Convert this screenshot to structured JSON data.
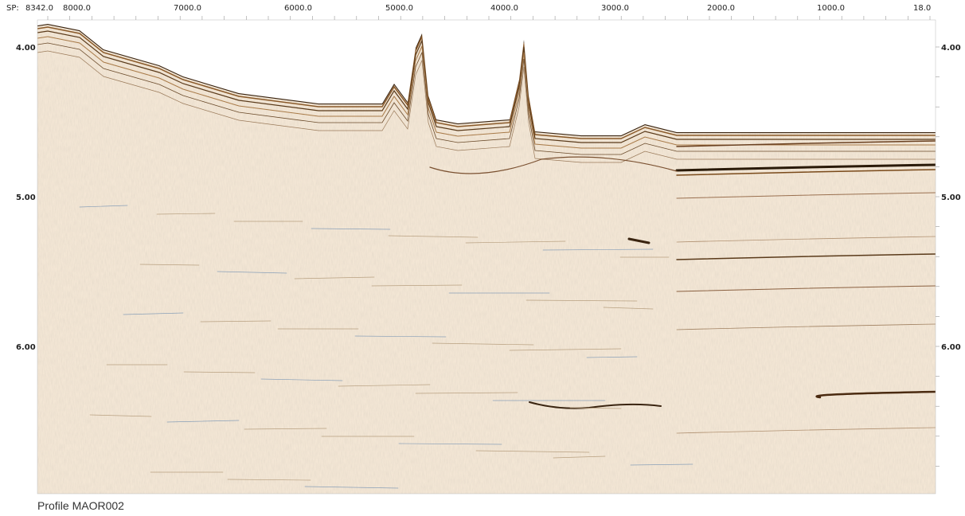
{
  "top_axis": {
    "prefix": "SP:",
    "labels": [
      "8342.0",
      "8000.0",
      "7000.0",
      "6000.0",
      "5000.0",
      "4000.0",
      "3000.0",
      "2000.0",
      "1000.0",
      "18.0"
    ]
  },
  "side_axis": {
    "labels": [
      "4.00",
      "5.00",
      "6.00"
    ]
  },
  "caption": "Profile MAOR002"
}
